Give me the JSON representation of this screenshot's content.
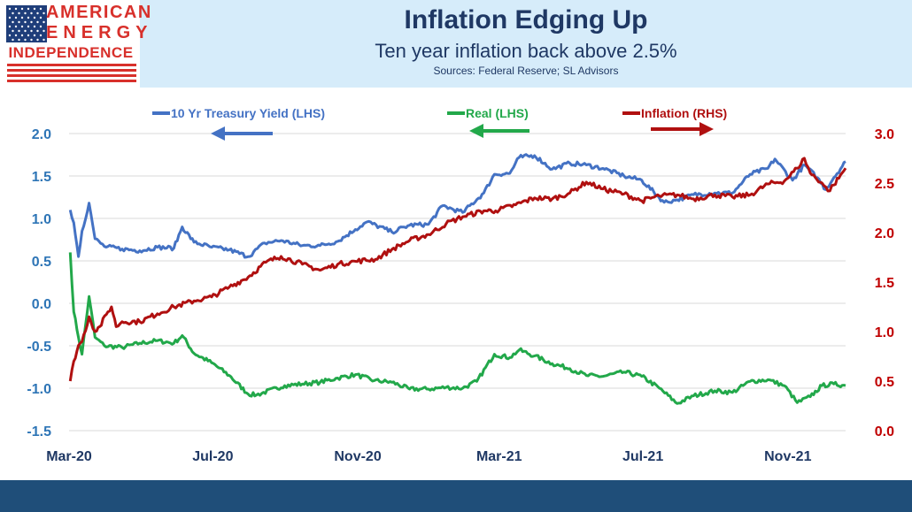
{
  "header": {
    "title": "Inflation Edging Up",
    "subtitle": "Ten year inflation back above 2.5%",
    "sources": "Sources: Federal Reserve; SL Advisors"
  },
  "logo": {
    "line1": "AMERICAN",
    "line2": "ENERGY",
    "line3": "INDEPENDENCE",
    "text_color": "#d8302b",
    "flag_blue": "#1f3e7a"
  },
  "chart_data": {
    "type": "line",
    "x_ticks": [
      "Mar-20",
      "Jul-20",
      "Nov-20",
      "Mar-21",
      "Jul-21",
      "Nov-21"
    ],
    "x_range": [
      "2020-03-01",
      "2021-12-20"
    ],
    "left_axis": {
      "ticks": [
        "2.0",
        "1.5",
        "1.0",
        "0.5",
        "0.0",
        "-0.5",
        "-1.0",
        "-1.5"
      ],
      "ylim": [
        -1.5,
        2.0
      ],
      "color": "#2e75b6"
    },
    "right_axis": {
      "ticks": [
        "3.0",
        "2.5",
        "2.0",
        "1.5",
        "1.0",
        "0.5",
        "0.0"
      ],
      "ylim": [
        0.0,
        3.0
      ],
      "color": "#c00000"
    },
    "grid": "horizontal",
    "legend": [
      {
        "label": "10 Yr Treasury Yield (LHS)",
        "color": "#4472c4",
        "arrow": "left"
      },
      {
        "label": "Real (LHS)",
        "color": "#22a84a",
        "arrow": "left"
      },
      {
        "label": "Inflation (RHS)",
        "color": "#b01010",
        "arrow": "right"
      }
    ],
    "series": [
      {
        "name": "10 Yr Treasury Yield (LHS)",
        "axis": "left",
        "color": "#4472c4",
        "points": [
          [
            "2020-03-02",
            1.1
          ],
          [
            "2020-03-05",
            0.95
          ],
          [
            "2020-03-09",
            0.55
          ],
          [
            "2020-03-12",
            0.85
          ],
          [
            "2020-03-18",
            1.18
          ],
          [
            "2020-03-23",
            0.76
          ],
          [
            "2020-03-31",
            0.67
          ],
          [
            "2020-04-15",
            0.64
          ],
          [
            "2020-04-30",
            0.62
          ],
          [
            "2020-05-15",
            0.66
          ],
          [
            "2020-05-29",
            0.65
          ],
          [
            "2020-06-05",
            0.9
          ],
          [
            "2020-06-15",
            0.72
          ],
          [
            "2020-06-30",
            0.66
          ],
          [
            "2020-07-15",
            0.63
          ],
          [
            "2020-07-31",
            0.55
          ],
          [
            "2020-08-14",
            0.71
          ],
          [
            "2020-08-28",
            0.74
          ],
          [
            "2020-09-15",
            0.68
          ],
          [
            "2020-09-30",
            0.68
          ],
          [
            "2020-10-15",
            0.73
          ],
          [
            "2020-10-30",
            0.87
          ],
          [
            "2020-11-09",
            0.96
          ],
          [
            "2020-11-30",
            0.84
          ],
          [
            "2020-12-15",
            0.92
          ],
          [
            "2020-12-31",
            0.93
          ],
          [
            "2021-01-12",
            1.15
          ],
          [
            "2021-01-29",
            1.07
          ],
          [
            "2021-02-16",
            1.3
          ],
          [
            "2021-02-25",
            1.52
          ],
          [
            "2021-03-10",
            1.53
          ],
          [
            "2021-03-18",
            1.72
          ],
          [
            "2021-03-31",
            1.74
          ],
          [
            "2021-04-15",
            1.58
          ],
          [
            "2021-04-30",
            1.65
          ],
          [
            "2021-05-14",
            1.63
          ],
          [
            "2021-05-28",
            1.59
          ],
          [
            "2021-06-15",
            1.5
          ],
          [
            "2021-06-30",
            1.45
          ],
          [
            "2021-07-19",
            1.19
          ],
          [
            "2021-07-30",
            1.22
          ],
          [
            "2021-08-13",
            1.28
          ],
          [
            "2021-08-31",
            1.3
          ],
          [
            "2021-09-15",
            1.3
          ],
          [
            "2021-09-30",
            1.52
          ],
          [
            "2021-10-15",
            1.59
          ],
          [
            "2021-10-21",
            1.7
          ],
          [
            "2021-11-05",
            1.45
          ],
          [
            "2021-11-15",
            1.63
          ],
          [
            "2021-11-26",
            1.48
          ],
          [
            "2021-12-03",
            1.34
          ],
          [
            "2021-12-10",
            1.48
          ],
          [
            "2021-12-20",
            1.67
          ]
        ]
      },
      {
        "name": "Real (LHS)",
        "axis": "left",
        "color": "#22a84a",
        "points": [
          [
            "2020-03-02",
            0.6
          ],
          [
            "2020-03-05",
            -0.1
          ],
          [
            "2020-03-09",
            -0.4
          ],
          [
            "2020-03-12",
            -0.6
          ],
          [
            "2020-03-18",
            0.08
          ],
          [
            "2020-03-23",
            -0.4
          ],
          [
            "2020-03-31",
            -0.5
          ],
          [
            "2020-04-15",
            -0.52
          ],
          [
            "2020-04-30",
            -0.47
          ],
          [
            "2020-05-15",
            -0.44
          ],
          [
            "2020-05-29",
            -0.47
          ],
          [
            "2020-06-05",
            -0.38
          ],
          [
            "2020-06-15",
            -0.59
          ],
          [
            "2020-06-30",
            -0.7
          ],
          [
            "2020-07-15",
            -0.85
          ],
          [
            "2020-07-31",
            -1.07
          ],
          [
            "2020-08-07",
            -1.08
          ],
          [
            "2020-08-31",
            -0.97
          ],
          [
            "2020-09-15",
            -0.95
          ],
          [
            "2020-09-30",
            -0.93
          ],
          [
            "2020-10-15",
            -0.88
          ],
          [
            "2020-10-30",
            -0.84
          ],
          [
            "2020-11-15",
            -0.91
          ],
          [
            "2020-11-30",
            -0.93
          ],
          [
            "2020-12-15",
            -1.01
          ],
          [
            "2020-12-31",
            -1.01
          ],
          [
            "2021-01-15",
            -0.99
          ],
          [
            "2021-01-29",
            -1.0
          ],
          [
            "2021-02-10",
            -0.92
          ],
          [
            "2021-02-25",
            -0.6
          ],
          [
            "2021-03-10",
            -0.64
          ],
          [
            "2021-03-18",
            -0.55
          ],
          [
            "2021-03-31",
            -0.62
          ],
          [
            "2021-04-15",
            -0.71
          ],
          [
            "2021-04-30",
            -0.77
          ],
          [
            "2021-05-14",
            -0.85
          ],
          [
            "2021-05-28",
            -0.86
          ],
          [
            "2021-06-15",
            -0.81
          ],
          [
            "2021-06-30",
            -0.86
          ],
          [
            "2021-07-15",
            -1.0
          ],
          [
            "2021-07-30",
            -1.18
          ],
          [
            "2021-08-13",
            -1.09
          ],
          [
            "2021-08-31",
            -1.03
          ],
          [
            "2021-09-15",
            -1.05
          ],
          [
            "2021-09-30",
            -0.92
          ],
          [
            "2021-10-15",
            -0.9
          ],
          [
            "2021-10-29",
            -0.97
          ],
          [
            "2021-11-09",
            -1.17
          ],
          [
            "2021-11-20",
            -1.1
          ],
          [
            "2021-11-30",
            -0.97
          ],
          [
            "2021-12-10",
            -0.95
          ],
          [
            "2021-12-20",
            -0.97
          ]
        ]
      },
      {
        "name": "Inflation (RHS)",
        "axis": "right",
        "color": "#b01010",
        "points": [
          [
            "2020-03-02",
            0.5
          ],
          [
            "2020-03-05",
            0.7
          ],
          [
            "2020-03-09",
            0.86
          ],
          [
            "2020-03-12",
            0.9
          ],
          [
            "2020-03-18",
            1.15
          ],
          [
            "2020-03-23",
            1.0
          ],
          [
            "2020-03-27",
            1.05
          ],
          [
            "2020-04-03",
            1.2
          ],
          [
            "2020-04-06",
            1.25
          ],
          [
            "2020-04-10",
            1.05
          ],
          [
            "2020-04-15",
            1.1
          ],
          [
            "2020-04-30",
            1.1
          ],
          [
            "2020-05-15",
            1.18
          ],
          [
            "2020-05-29",
            1.25
          ],
          [
            "2020-06-15",
            1.31
          ],
          [
            "2020-06-30",
            1.35
          ],
          [
            "2020-07-15",
            1.45
          ],
          [
            "2020-07-31",
            1.55
          ],
          [
            "2020-08-15",
            1.7
          ],
          [
            "2020-08-28",
            1.76
          ],
          [
            "2020-09-15",
            1.68
          ],
          [
            "2020-09-30",
            1.62
          ],
          [
            "2020-10-15",
            1.68
          ],
          [
            "2020-10-30",
            1.71
          ],
          [
            "2020-11-16",
            1.73
          ],
          [
            "2020-11-30",
            1.83
          ],
          [
            "2020-12-15",
            1.92
          ],
          [
            "2020-12-31",
            1.98
          ],
          [
            "2021-01-15",
            2.09
          ],
          [
            "2021-01-29",
            2.16
          ],
          [
            "2021-02-16",
            2.22
          ],
          [
            "2021-02-26",
            2.22
          ],
          [
            "2021-03-15",
            2.28
          ],
          [
            "2021-03-31",
            2.35
          ],
          [
            "2021-04-15",
            2.34
          ],
          [
            "2021-04-30",
            2.4
          ],
          [
            "2021-05-14",
            2.51
          ],
          [
            "2021-05-28",
            2.44
          ],
          [
            "2021-06-15",
            2.39
          ],
          [
            "2021-06-30",
            2.32
          ],
          [
            "2021-07-15",
            2.37
          ],
          [
            "2021-07-30",
            2.38
          ],
          [
            "2021-08-13",
            2.34
          ],
          [
            "2021-08-31",
            2.38
          ],
          [
            "2021-09-15",
            2.36
          ],
          [
            "2021-09-30",
            2.38
          ],
          [
            "2021-10-15",
            2.49
          ],
          [
            "2021-10-29",
            2.52
          ],
          [
            "2021-11-09",
            2.65
          ],
          [
            "2021-11-15",
            2.75
          ],
          [
            "2021-11-20",
            2.6
          ],
          [
            "2021-11-30",
            2.5
          ],
          [
            "2021-12-05",
            2.42
          ],
          [
            "2021-12-10",
            2.48
          ],
          [
            "2021-12-20",
            2.65
          ]
        ]
      }
    ]
  }
}
